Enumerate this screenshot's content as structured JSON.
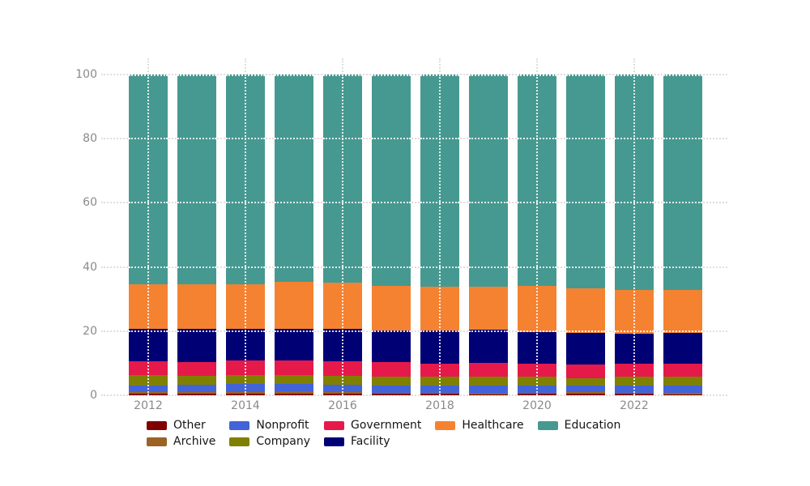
{
  "chart_data": {
    "type": "bar",
    "stacked": true,
    "stack_total": 100,
    "title": "",
    "xlabel": "",
    "ylabel": "",
    "categories": [
      "2012",
      "2013",
      "2014",
      "2015",
      "2016",
      "2017",
      "2018",
      "2019",
      "2020",
      "2021",
      "2022",
      "2023"
    ],
    "xticks_shown": [
      "2012",
      "2014",
      "2016",
      "2018",
      "2020",
      "2022"
    ],
    "yticks": [
      0,
      20,
      40,
      60,
      80,
      100
    ],
    "ylim": [
      0,
      100
    ],
    "grid": "dotted",
    "legend_position": "bottom",
    "series": [
      {
        "name": "Other",
        "color": "#800000",
        "values": [
          0.4,
          0.4,
          0.5,
          0.6,
          0.4,
          0.4,
          0.4,
          0.3,
          0.4,
          0.4,
          0.4,
          0.3
        ]
      },
      {
        "name": "Archive",
        "color": "#9a6324",
        "values": [
          0.5,
          0.5,
          0.5,
          0.6,
          0.6,
          0.4,
          0.4,
          0.3,
          0.4,
          0.5,
          0.4,
          0.4
        ]
      },
      {
        "name": "Nonprofit",
        "color": "#4363d8",
        "values": [
          2.0,
          2.4,
          2.5,
          2.3,
          2.3,
          2.1,
          2.3,
          2.3,
          2.1,
          2.0,
          2.3,
          2.2
        ]
      },
      {
        "name": "Company",
        "color": "#808000",
        "values": [
          3.4,
          2.7,
          2.8,
          2.9,
          2.7,
          3.0,
          2.6,
          2.8,
          2.8,
          2.5,
          2.6,
          2.8
        ]
      },
      {
        "name": "Government",
        "color": "#e6194b",
        "values": [
          4.4,
          4.4,
          4.5,
          4.5,
          4.7,
          4.4,
          4.2,
          4.4,
          4.2,
          4.3,
          4.2,
          4.2
        ]
      },
      {
        "name": "Facility",
        "color": "#000075",
        "values": [
          9.9,
          10.2,
          10.0,
          9.7,
          10.1,
          9.8,
          10.2,
          10.3,
          9.8,
          9.8,
          9.4,
          9.6
        ]
      },
      {
        "name": "Healthcare",
        "color": "#f58231",
        "values": [
          14.1,
          14.0,
          13.7,
          14.8,
          14.4,
          14.0,
          13.8,
          13.5,
          14.4,
          13.9,
          13.6,
          13.4
        ]
      },
      {
        "name": "Education",
        "color": "#469990",
        "values": [
          65.3,
          65.4,
          65.5,
          64.6,
          64.8,
          65.9,
          66.1,
          66.1,
          65.9,
          66.6,
          67.1,
          67.1
        ]
      }
    ]
  },
  "legend": {
    "columns": [
      [
        {
          "label": "Other",
          "color": "#800000"
        },
        {
          "label": "Archive",
          "color": "#9a6324"
        }
      ],
      [
        {
          "label": "Nonprofit",
          "color": "#4363d8"
        },
        {
          "label": "Company",
          "color": "#808000"
        }
      ],
      [
        {
          "label": "Government",
          "color": "#e6194b"
        },
        {
          "label": "Facility",
          "color": "#000075"
        }
      ],
      [
        {
          "label": "Healthcare",
          "color": "#f58231"
        }
      ],
      [
        {
          "label": "Education",
          "color": "#469990"
        }
      ]
    ]
  },
  "style": {
    "gridline_color_outside": "#dedede",
    "gridline_color_over_bars": "#ffffff",
    "tick_label_color": "#8a8a8a",
    "legend_text_color": "#151515",
    "background": "#ffffff"
  }
}
